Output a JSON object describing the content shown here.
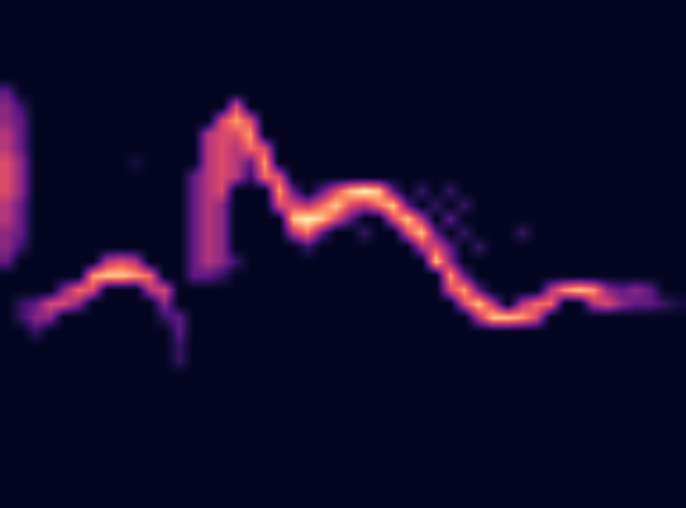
{
  "chart_data": {
    "type": "heatmap",
    "tick_labels": false,
    "grid": false,
    "zlim": [
      0,
      10
    ],
    "cells": [
      [
        0,
        0,
        0,
        0,
        0,
        0,
        0,
        0,
        0,
        0,
        0,
        0,
        0,
        0,
        0,
        0,
        0,
        0,
        0,
        0,
        0,
        0,
        0,
        0,
        0,
        0,
        0,
        0,
        0,
        0,
        0,
        0,
        0,
        0,
        0,
        0,
        0,
        0,
        0,
        0,
        0,
        0,
        0,
        0,
        0,
        0,
        0,
        0
      ],
      [
        0,
        0,
        0,
        0,
        0,
        0,
        0,
        0,
        0,
        0,
        0,
        0,
        0,
        0,
        0,
        0,
        0,
        0,
        0,
        0,
        0,
        0,
        0,
        0,
        0,
        0,
        0,
        0,
        0,
        0,
        0,
        0,
        0,
        0,
        0,
        0,
        0,
        0,
        0,
        0,
        0,
        0,
        0,
        0,
        0,
        0,
        0,
        0
      ],
      [
        0,
        0,
        0,
        0,
        0,
        0,
        0,
        0,
        0,
        0,
        0,
        0,
        0,
        0,
        0,
        0,
        0,
        0,
        0,
        0,
        0,
        0,
        0,
        0,
        0,
        0,
        0,
        0,
        0,
        0,
        0,
        0,
        0,
        0,
        0,
        0,
        0,
        0,
        0,
        0,
        0,
        0,
        0,
        0,
        0,
        0,
        0,
        0
      ],
      [
        0,
        0,
        0,
        0,
        0,
        0,
        0,
        0,
        0,
        0,
        0,
        0,
        0,
        0,
        0,
        0,
        0,
        0,
        0,
        0,
        0,
        0,
        0,
        0,
        0,
        0,
        0,
        0,
        0,
        0,
        0,
        0,
        0,
        0,
        0,
        0,
        0,
        0,
        0,
        0,
        0,
        0,
        0,
        0,
        0,
        0,
        0,
        0
      ],
      [
        0,
        0,
        0,
        0,
        0,
        0,
        0,
        0,
        0,
        0,
        0,
        0,
        0,
        0,
        0,
        0,
        0,
        0,
        0,
        0,
        0,
        0,
        0,
        0,
        0,
        0,
        0,
        0,
        0,
        0,
        0,
        0,
        0,
        0,
        0,
        0,
        0,
        0,
        0,
        0,
        0,
        0,
        0,
        0,
        0,
        0,
        0,
        0
      ],
      [
        0,
        0,
        0,
        0,
        0,
        0,
        0,
        0,
        0,
        0,
        0,
        0,
        0,
        0,
        0,
        0,
        0,
        0,
        0,
        0,
        0,
        0,
        0,
        0,
        0,
        0,
        0,
        0,
        0,
        0,
        0,
        0,
        0,
        0,
        0,
        0,
        0,
        0,
        0,
        0,
        0,
        0,
        0,
        0,
        0,
        0,
        0,
        0
      ],
      [
        3,
        0,
        0,
        0,
        0,
        0,
        0,
        0,
        0,
        0,
        0,
        0,
        0,
        0,
        0,
        0,
        0,
        0,
        0,
        0,
        0,
        0,
        0,
        0,
        0,
        0,
        0,
        0,
        0,
        0,
        0,
        0,
        0,
        0,
        0,
        0,
        0,
        0,
        0,
        0,
        0,
        0,
        0,
        0,
        0,
        0,
        0,
        0
      ],
      [
        4,
        2,
        0,
        0,
        0,
        0,
        0,
        0,
        0,
        0,
        0,
        0,
        0,
        0,
        0,
        0,
        6,
        0,
        0,
        0,
        0,
        0,
        0,
        0,
        0,
        0,
        0,
        0,
        0,
        0,
        0,
        0,
        0,
        0,
        0,
        0,
        0,
        0,
        0,
        0,
        0,
        0,
        0,
        0,
        0,
        0,
        0,
        0
      ],
      [
        4,
        3,
        0,
        0,
        0,
        0,
        0,
        0,
        0,
        0,
        0,
        0,
        0,
        0,
        0,
        6,
        8,
        6,
        0,
        0,
        0,
        0,
        0,
        0,
        0,
        0,
        0,
        0,
        0,
        0,
        0,
        0,
        0,
        0,
        0,
        0,
        0,
        0,
        0,
        0,
        0,
        0,
        0,
        0,
        0,
        0,
        0,
        0
      ],
      [
        5,
        3,
        0,
        0,
        0,
        0,
        0,
        0,
        0,
        0,
        0,
        0,
        0,
        0,
        5,
        6,
        6,
        8,
        0,
        0,
        0,
        0,
        0,
        0,
        0,
        0,
        0,
        0,
        0,
        0,
        0,
        0,
        0,
        0,
        0,
        0,
        0,
        0,
        0,
        0,
        0,
        0,
        0,
        0,
        0,
        0,
        0,
        0
      ],
      [
        5,
        3,
        0,
        0,
        0,
        0,
        0,
        0,
        0,
        0,
        0,
        0,
        0,
        0,
        5,
        6,
        5,
        7,
        6,
        0,
        0,
        0,
        0,
        0,
        0,
        0,
        0,
        0,
        0,
        0,
        0,
        0,
        0,
        0,
        0,
        0,
        0,
        0,
        0,
        0,
        0,
        0,
        0,
        0,
        0,
        0,
        0,
        0
      ],
      [
        6,
        4,
        0,
        0,
        0,
        0,
        0,
        0,
        0,
        1,
        0,
        0,
        0,
        0,
        5,
        6,
        5,
        3,
        8,
        0,
        0,
        0,
        0,
        0,
        0,
        0,
        0,
        0,
        0,
        0,
        0,
        0,
        0,
        0,
        0,
        0,
        0,
        0,
        0,
        0,
        0,
        0,
        0,
        0,
        0,
        0,
        0,
        0
      ],
      [
        6,
        4,
        0,
        0,
        0,
        0,
        0,
        0,
        0,
        0,
        0,
        0,
        0,
        3,
        5,
        6,
        5,
        2,
        7,
        6,
        0,
        0,
        0,
        0,
        0,
        0,
        0,
        0,
        0,
        0,
        0,
        0,
        0,
        0,
        0,
        0,
        0,
        0,
        0,
        0,
        0,
        0,
        0,
        0,
        0,
        0,
        0,
        0
      ],
      [
        6,
        4,
        0,
        0,
        0,
        0,
        0,
        0,
        0,
        0,
        0,
        0,
        0,
        3,
        5,
        6,
        0,
        0,
        0,
        8,
        3,
        0,
        3,
        6,
        9,
        10,
        9,
        3,
        0,
        2,
        0,
        2,
        0,
        0,
        0,
        0,
        0,
        0,
        0,
        0,
        0,
        0,
        0,
        0,
        0,
        0,
        0,
        0
      ],
      [
        5,
        3,
        0,
        0,
        0,
        0,
        0,
        0,
        0,
        0,
        0,
        0,
        0,
        3,
        5,
        4,
        0,
        0,
        0,
        6,
        6,
        5,
        7,
        9,
        6,
        5,
        7,
        9,
        3,
        0,
        2,
        0,
        2,
        0,
        0,
        0,
        0,
        0,
        0,
        0,
        0,
        0,
        0,
        0,
        0,
        0,
        0,
        0
      ],
      [
        5,
        3,
        0,
        0,
        0,
        0,
        0,
        0,
        0,
        0,
        0,
        0,
        0,
        3,
        5,
        4,
        0,
        0,
        0,
        0,
        9,
        10,
        9,
        6,
        3,
        0,
        0,
        6,
        9,
        5,
        0,
        3,
        0,
        0,
        0,
        0,
        0,
        0,
        0,
        0,
        0,
        0,
        0,
        0,
        0,
        0,
        0,
        0
      ],
      [
        4,
        3,
        0,
        0,
        0,
        0,
        0,
        0,
        0,
        0,
        0,
        0,
        0,
        3,
        5,
        4,
        0,
        0,
        0,
        0,
        5,
        7,
        3,
        0,
        0,
        2,
        0,
        0,
        6,
        9,
        3,
        0,
        2,
        0,
        0,
        0,
        2,
        0,
        0,
        0,
        0,
        0,
        0,
        0,
        0,
        0,
        0,
        0
      ],
      [
        4,
        2,
        0,
        0,
        0,
        0,
        0,
        0,
        0,
        0,
        0,
        0,
        0,
        3,
        5,
        4,
        0,
        0,
        0,
        0,
        0,
        2,
        0,
        0,
        0,
        0,
        0,
        0,
        0,
        5,
        6,
        3,
        0,
        2,
        0,
        0,
        0,
        0,
        0,
        0,
        0,
        0,
        0,
        0,
        0,
        0,
        0,
        0
      ],
      [
        3,
        0,
        0,
        0,
        0,
        0,
        0,
        5,
        6,
        5,
        0,
        0,
        0,
        3,
        5,
        4,
        2,
        0,
        0,
        0,
        0,
        0,
        0,
        0,
        0,
        0,
        0,
        0,
        0,
        0,
        9,
        4,
        0,
        0,
        0,
        0,
        0,
        0,
        0,
        0,
        0,
        0,
        0,
        0,
        0,
        0,
        0,
        0
      ],
      [
        0,
        0,
        0,
        0,
        0,
        0,
        8,
        9,
        9,
        8,
        7,
        0,
        0,
        3,
        3,
        2,
        0,
        0,
        0,
        0,
        0,
        0,
        0,
        0,
        0,
        0,
        0,
        0,
        0,
        0,
        0,
        8,
        3,
        0,
        0,
        0,
        0,
        0,
        0,
        0,
        0,
        0,
        0,
        0,
        0,
        0,
        0,
        0
      ],
      [
        0,
        0,
        0,
        0,
        4,
        7,
        6,
        0,
        0,
        0,
        5,
        6,
        0,
        0,
        0,
        0,
        0,
        0,
        0,
        0,
        0,
        0,
        0,
        0,
        0,
        0,
        0,
        0,
        0,
        0,
        0,
        6,
        8,
        3,
        0,
        0,
        0,
        0,
        5,
        8,
        9,
        8,
        4,
        3,
        4,
        3,
        0,
        0
      ],
      [
        0,
        2,
        3,
        6,
        6,
        4,
        0,
        0,
        0,
        0,
        0,
        4,
        0,
        0,
        0,
        0,
        0,
        0,
        0,
        0,
        0,
        0,
        0,
        0,
        0,
        0,
        0,
        0,
        0,
        0,
        0,
        0,
        6,
        9,
        5,
        0,
        5,
        7,
        7,
        0,
        0,
        5,
        6,
        4,
        3,
        3,
        2,
        1
      ],
      [
        0,
        2,
        4,
        4,
        0,
        0,
        0,
        0,
        0,
        0,
        0,
        2,
        3,
        0,
        0,
        0,
        0,
        0,
        0,
        0,
        0,
        0,
        0,
        0,
        0,
        0,
        0,
        0,
        0,
        0,
        0,
        0,
        0,
        5,
        9,
        9,
        8,
        6,
        0,
        0,
        0,
        0,
        0,
        0,
        0,
        0,
        0,
        0
      ],
      [
        0,
        0,
        2,
        0,
        0,
        0,
        0,
        0,
        0,
        0,
        0,
        0,
        3,
        0,
        0,
        0,
        0,
        0,
        0,
        0,
        0,
        0,
        0,
        0,
        0,
        0,
        0,
        0,
        0,
        0,
        0,
        0,
        0,
        0,
        0,
        0,
        0,
        0,
        0,
        0,
        0,
        0,
        0,
        0,
        0,
        0,
        0,
        0
      ],
      [
        0,
        0,
        0,
        0,
        0,
        0,
        0,
        0,
        0,
        0,
        0,
        0,
        2,
        0,
        0,
        0,
        0,
        0,
        0,
        0,
        0,
        0,
        0,
        0,
        0,
        0,
        0,
        0,
        0,
        0,
        0,
        0,
        0,
        0,
        0,
        0,
        0,
        0,
        0,
        0,
        0,
        0,
        0,
        0,
        0,
        0,
        0,
        0
      ],
      [
        0,
        0,
        0,
        0,
        0,
        0,
        0,
        0,
        0,
        0,
        0,
        0,
        2,
        0,
        0,
        0,
        0,
        0,
        0,
        0,
        0,
        0,
        0,
        0,
        0,
        0,
        0,
        0,
        0,
        0,
        0,
        0,
        0,
        0,
        0,
        0,
        0,
        0,
        0,
        0,
        0,
        0,
        0,
        0,
        0,
        0,
        0,
        0
      ],
      [
        0,
        0,
        0,
        0,
        0,
        0,
        0,
        0,
        0,
        0,
        0,
        0,
        0,
        0,
        0,
        0,
        0,
        0,
        0,
        0,
        0,
        0,
        0,
        0,
        0,
        0,
        0,
        0,
        0,
        0,
        0,
        0,
        0,
        0,
        0,
        0,
        0,
        0,
        0,
        0,
        0,
        0,
        0,
        0,
        0,
        0,
        0,
        0
      ],
      [
        0,
        0,
        0,
        0,
        0,
        0,
        0,
        0,
        0,
        0,
        0,
        0,
        0,
        0,
        0,
        0,
        0,
        0,
        0,
        0,
        0,
        0,
        0,
        0,
        0,
        0,
        0,
        0,
        0,
        0,
        0,
        0,
        0,
        0,
        0,
        0,
        0,
        0,
        0,
        0,
        0,
        0,
        0,
        0,
        0,
        0,
        0,
        0
      ],
      [
        0,
        0,
        0,
        0,
        0,
        0,
        0,
        0,
        0,
        0,
        0,
        0,
        0,
        0,
        0,
        0,
        0,
        0,
        0,
        0,
        0,
        0,
        0,
        0,
        0,
        0,
        0,
        0,
        0,
        0,
        0,
        0,
        0,
        0,
        0,
        0,
        0,
        0,
        0,
        0,
        0,
        0,
        0,
        0,
        0,
        0,
        0,
        0
      ],
      [
        0,
        0,
        0,
        0,
        0,
        0,
        0,
        0,
        0,
        0,
        0,
        0,
        0,
        0,
        0,
        0,
        0,
        0,
        0,
        0,
        0,
        0,
        0,
        0,
        0,
        0,
        0,
        0,
        0,
        0,
        0,
        0,
        0,
        0,
        0,
        0,
        0,
        0,
        0,
        0,
        0,
        0,
        0,
        0,
        0,
        0,
        0,
        0
      ],
      [
        0,
        0,
        0,
        0,
        0,
        0,
        0,
        0,
        0,
        0,
        0,
        0,
        0,
        0,
        0,
        0,
        0,
        0,
        0,
        0,
        0,
        0,
        0,
        0,
        0,
        0,
        0,
        0,
        0,
        0,
        0,
        0,
        0,
        0,
        0,
        0,
        0,
        0,
        0,
        0,
        0,
        0,
        0,
        0,
        0,
        0,
        0,
        0
      ],
      [
        0,
        0,
        0,
        0,
        0,
        0,
        0,
        0,
        0,
        0,
        0,
        0,
        0,
        0,
        0,
        0,
        0,
        0,
        0,
        0,
        0,
        0,
        0,
        0,
        0,
        0,
        0,
        0,
        0,
        0,
        0,
        0,
        0,
        0,
        0,
        0,
        0,
        0,
        0,
        0,
        0,
        0,
        0,
        0,
        0,
        0,
        0,
        0
      ],
      [
        0,
        0,
        0,
        0,
        0,
        0,
        0,
        0,
        0,
        0,
        0,
        0,
        0,
        0,
        0,
        0,
        0,
        0,
        0,
        0,
        0,
        0,
        0,
        0,
        0,
        0,
        0,
        0,
        0,
        0,
        0,
        0,
        0,
        0,
        0,
        0,
        0,
        0,
        0,
        0,
        0,
        0,
        0,
        0,
        0,
        0,
        0,
        0
      ],
      [
        0,
        0,
        0,
        0,
        0,
        0,
        0,
        0,
        0,
        0,
        0,
        0,
        0,
        0,
        0,
        0,
        0,
        0,
        0,
        0,
        0,
        0,
        0,
        0,
        0,
        0,
        0,
        0,
        0,
        0,
        0,
        0,
        0,
        0,
        0,
        0,
        0,
        0,
        0,
        0,
        0,
        0,
        0,
        0,
        0,
        0,
        0,
        0
      ],
      [
        0,
        0,
        0,
        0,
        0,
        0,
        0,
        0,
        0,
        0,
        0,
        0,
        0,
        0,
        0,
        0,
        0,
        0,
        0,
        0,
        0,
        0,
        0,
        0,
        0,
        0,
        0,
        0,
        0,
        0,
        0,
        0,
        0,
        0,
        0,
        0,
        0,
        0,
        0,
        0,
        0,
        0,
        0,
        0,
        0,
        0,
        0,
        0
      ],
      [
        0,
        0,
        0,
        0,
        0,
        0,
        0,
        0,
        0,
        0,
        0,
        0,
        0,
        0,
        0,
        0,
        0,
        0,
        0,
        0,
        0,
        0,
        0,
        0,
        0,
        0,
        0,
        0,
        0,
        0,
        0,
        0,
        0,
        0,
        0,
        0,
        0,
        0,
        0,
        0,
        0,
        0,
        0,
        0,
        0,
        0,
        0,
        0
      ]
    ]
  }
}
